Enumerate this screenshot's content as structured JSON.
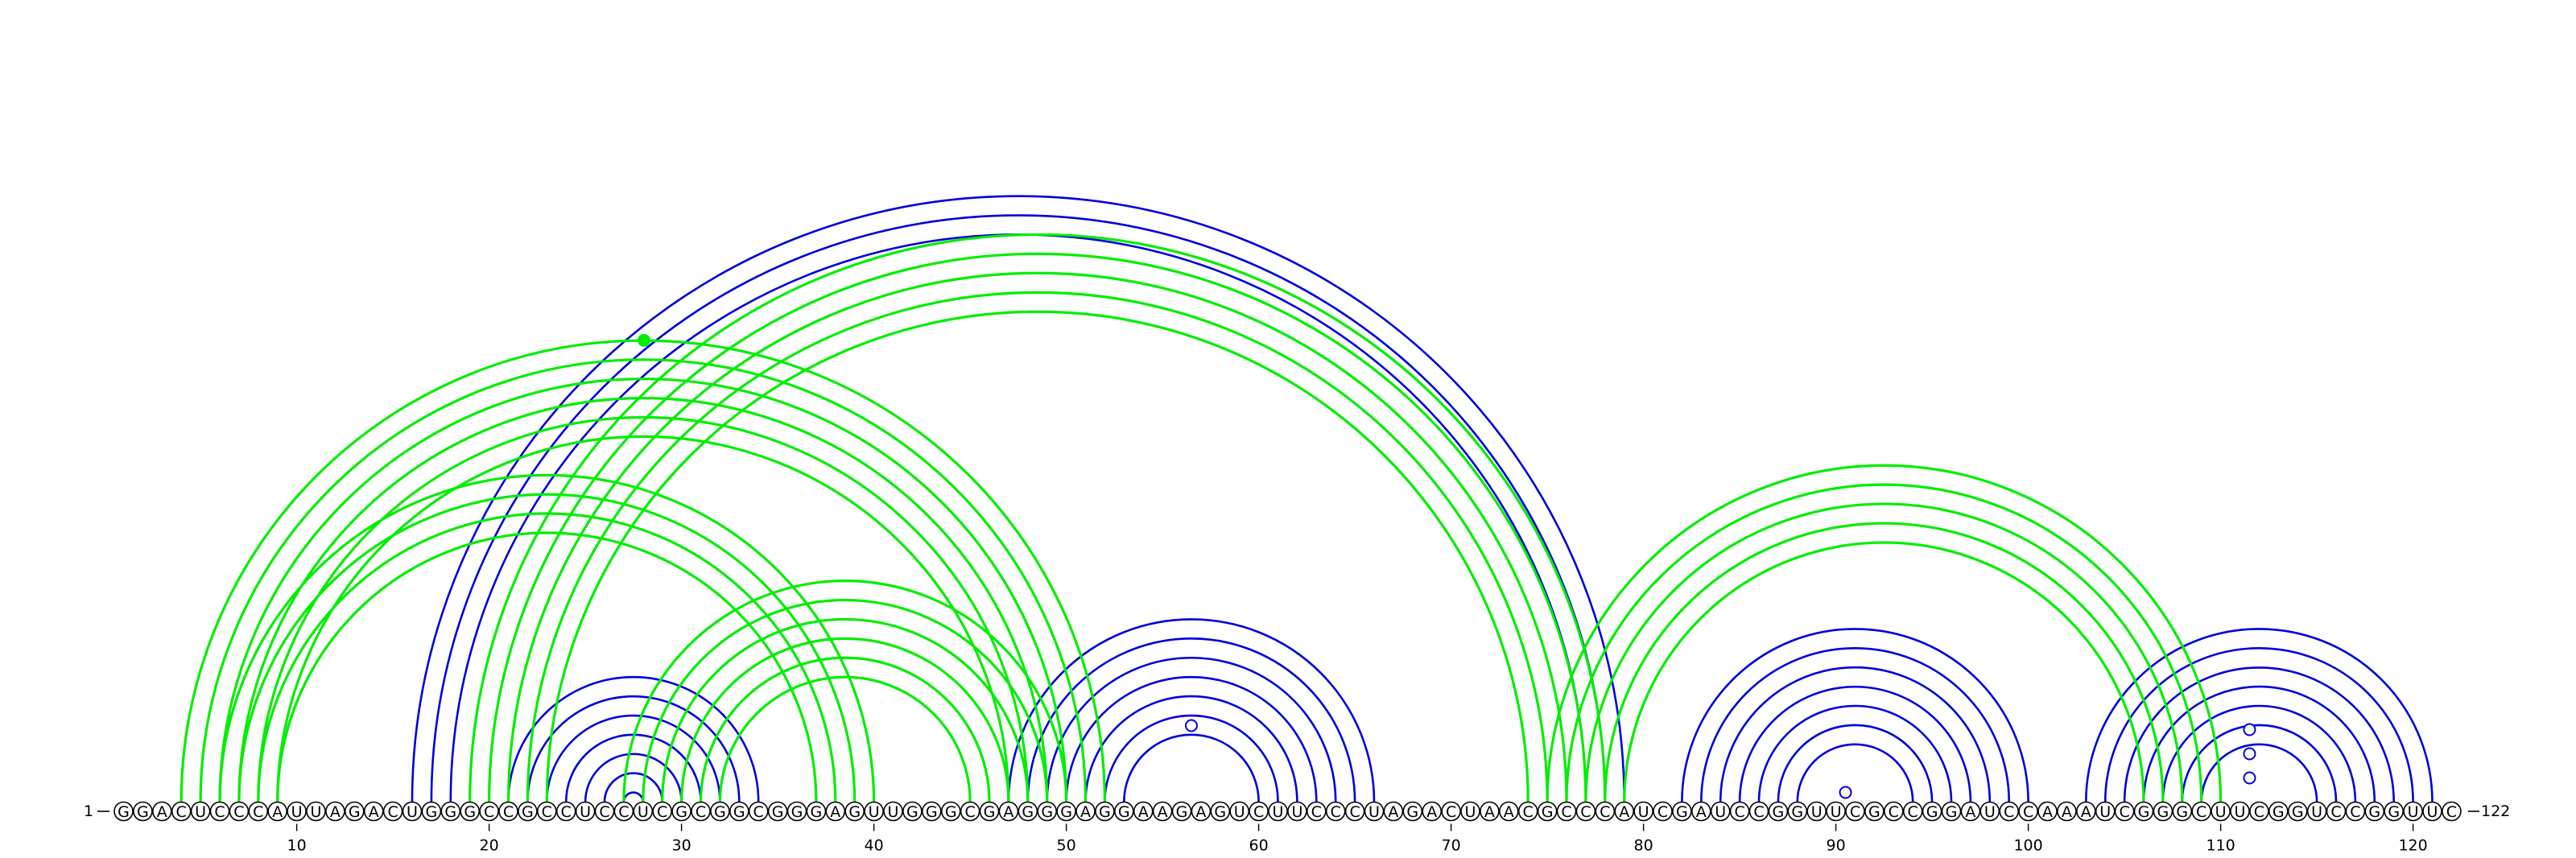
{
  "sequence": "GGACUCCCAUUAGACUGGGCCGCCUCCUCGCGGCGGGAGUUGGGCGAGGGAGGAAGAGUCUUCCCUAGACUAACGCCCAUCGAUCCGGUUCGCCGGAUCCAAAUCGGGCUUCGGUCCGGUUC",
  "start_label": "1",
  "end_label": "122",
  "tick_labels": [
    "10",
    "20",
    "30",
    "40",
    "50",
    "60",
    "70",
    "80",
    "90",
    "100",
    "110",
    "120"
  ],
  "colors": {
    "blue": "#0000dd",
    "green": "#00ee00",
    "text": "#000000"
  },
  "helices": [
    {
      "color": "blue",
      "i": 21,
      "j": 34,
      "n": 7
    },
    {
      "color": "blue",
      "i": 47,
      "j": 66,
      "n": 7
    },
    {
      "color": "blue",
      "i": 82,
      "j": 100,
      "n": 7
    },
    {
      "color": "blue",
      "i": 103,
      "j": 121,
      "n": 7
    },
    {
      "color": "blue",
      "i": 16,
      "j": 79,
      "n": 3
    },
    {
      "color": "green",
      "i": 4,
      "j": 52,
      "n": 6
    },
    {
      "color": "green",
      "i": 6,
      "j": 40,
      "n": 4
    },
    {
      "color": "green",
      "i": 19,
      "j": 78,
      "n": 5
    },
    {
      "color": "green",
      "i": 27,
      "j": 50,
      "n": 6
    },
    {
      "color": "green",
      "i": 75,
      "j": 110,
      "n": 5
    }
  ],
  "markers": [
    {
      "color": "blue",
      "style": "open",
      "i": 56,
      "j": 57
    },
    {
      "color": "blue",
      "style": "open",
      "i": 90,
      "j": 91
    },
    {
      "color": "blue",
      "style": "open",
      "i": 111,
      "j": 112,
      "level": 1
    },
    {
      "color": "blue",
      "style": "open",
      "i": 111,
      "j": 112,
      "level": 2
    },
    {
      "color": "blue",
      "style": "open",
      "i": 111,
      "j": 112,
      "level": 3
    },
    {
      "color": "green",
      "style": "filled",
      "i": 4,
      "j": 52
    }
  ]
}
